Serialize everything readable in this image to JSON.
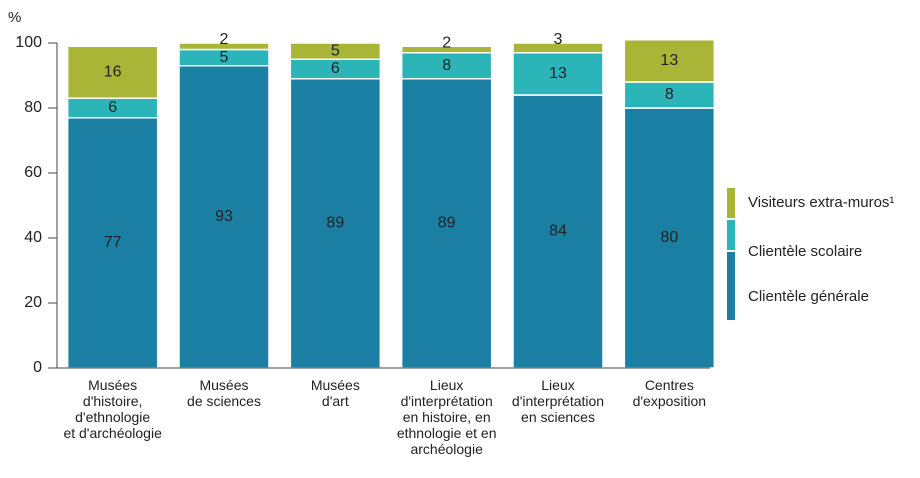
{
  "chart_data": {
    "type": "stacked_bar",
    "y_axis_label": "%",
    "categories": [
      "Musées\nd'histoire,\nd'ethnologie\net d'archéologie",
      "Musées\nde sciences",
      "Musées\nd'art",
      "Lieux\nd'interprétation\nen histoire, en\nethnologie et en\narchéologie",
      "Lieux\nd'interprétation\nen sciences",
      "Centres\nd'exposition"
    ],
    "series": [
      {
        "name": "Clientèle générale",
        "color": "#1a7fa3",
        "label_color": "#ffffff",
        "values": [
          77,
          93,
          89,
          89,
          84,
          80
        ]
      },
      {
        "name": "Clientèle scolaire",
        "color": "#2cb5b8",
        "label_color": "#ffffff",
        "values": [
          6,
          5,
          6,
          8,
          13,
          8
        ]
      },
      {
        "name": "Visiteurs extra-muros¹",
        "color": "#a9b536",
        "label_color": "#222222",
        "values": [
          16,
          2,
          5,
          2,
          3,
          13
        ]
      }
    ],
    "ylim": [
      0,
      100
    ],
    "yticks": [
      0,
      20,
      40,
      60,
      80,
      100
    ],
    "grid": false
  }
}
